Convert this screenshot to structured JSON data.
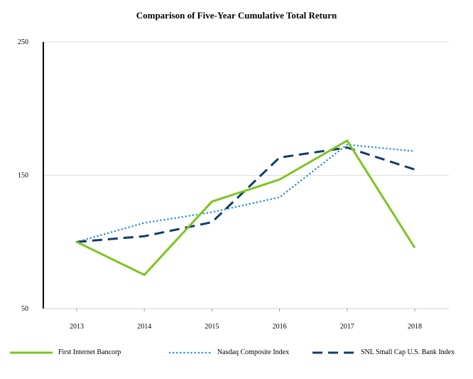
{
  "chart_data": {
    "type": "line",
    "title": "Comparison of Five-Year Cumulative Total Return",
    "xlabel": "",
    "ylabel": "",
    "categories": [
      "2013",
      "2014",
      "2015",
      "2016",
      "2017",
      "2018"
    ],
    "ylim": [
      50,
      250
    ],
    "yticks": [
      "50",
      "150",
      "250"
    ],
    "grid": "horizontal",
    "legend_position": "bottom",
    "series": [
      {
        "name": "First Internet Bancorp",
        "values": [
          100,
          75.3,
          130.3,
          146.8,
          176.0,
          95.6
        ],
        "color": "#7dc41f",
        "style": "solid"
      },
      {
        "name": "Nasdaq Composite Index",
        "values": [
          100,
          114.3,
          122.3,
          133.5,
          173.0,
          168.0
        ],
        "color": "#2b90d9",
        "style": "dotted"
      },
      {
        "name": "SNL Small Cap U.S. Bank Index",
        "values": [
          100,
          104.3,
          114.8,
          163.3,
          170.8,
          154.3
        ],
        "color": "#0f3d6b",
        "style": "dashed"
      }
    ]
  }
}
